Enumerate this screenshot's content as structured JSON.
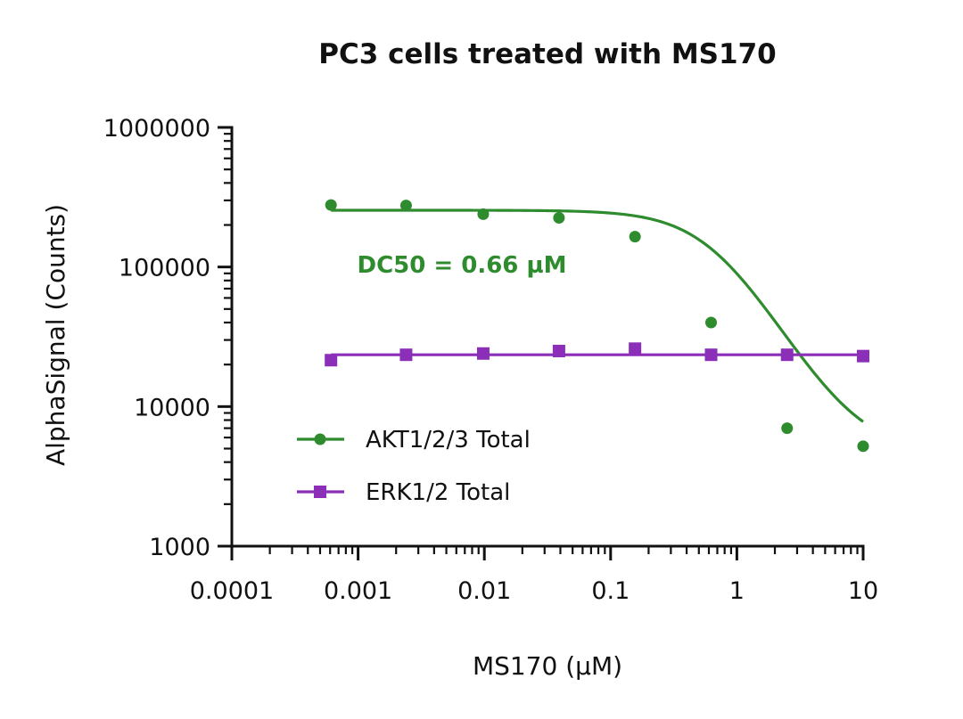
{
  "chart_data": {
    "type": "scatter",
    "title": "PC3 cells treated with MS170",
    "xlabel": "MS170 (µM)",
    "ylabel": "AlphaSignal (Counts)",
    "xscale": "log",
    "yscale": "log",
    "xlim": [
      0.0001,
      10
    ],
    "ylim": [
      1000,
      1000000
    ],
    "x_ticks": [
      "0.0001",
      "0.001",
      "0.01",
      "0.1",
      "1",
      "10"
    ],
    "y_ticks": [
      "1000",
      "10000",
      "100000",
      "1000000"
    ],
    "x_tick_values": [
      0.0001,
      0.001,
      0.01,
      0.1,
      1,
      10
    ],
    "y_tick_values": [
      1000,
      10000,
      100000,
      1000000
    ],
    "legend_position": "lower-left",
    "grid": false,
    "annotations": [
      {
        "text": "DC50 = 0.66 µM",
        "color": "#2e8b2e"
      }
    ],
    "series": [
      {
        "name": "AKT1/2/3 Total",
        "color": "#2e8b2e",
        "marker": "circle",
        "x": [
          0.00061,
          0.0024,
          0.0098,
          0.039,
          0.156,
          0.625,
          2.5,
          10
        ],
        "y": [
          278000,
          276000,
          239000,
          225000,
          165000,
          40000,
          7000,
          5200
        ],
        "fit": {
          "model": "4PL",
          "top": 255000,
          "bottom": 4600,
          "ec50": 0.66,
          "hill": 1.6
        }
      },
      {
        "name": "ERK1/2 Total",
        "color": "#8c2fb8",
        "marker": "square",
        "x": [
          0.00061,
          0.0024,
          0.0098,
          0.039,
          0.156,
          0.625,
          2.5,
          10
        ],
        "y": [
          21500,
          23500,
          24000,
          25000,
          26000,
          23500,
          23500,
          23000
        ],
        "fit": {
          "model": "flat",
          "value": 23500
        }
      }
    ]
  }
}
